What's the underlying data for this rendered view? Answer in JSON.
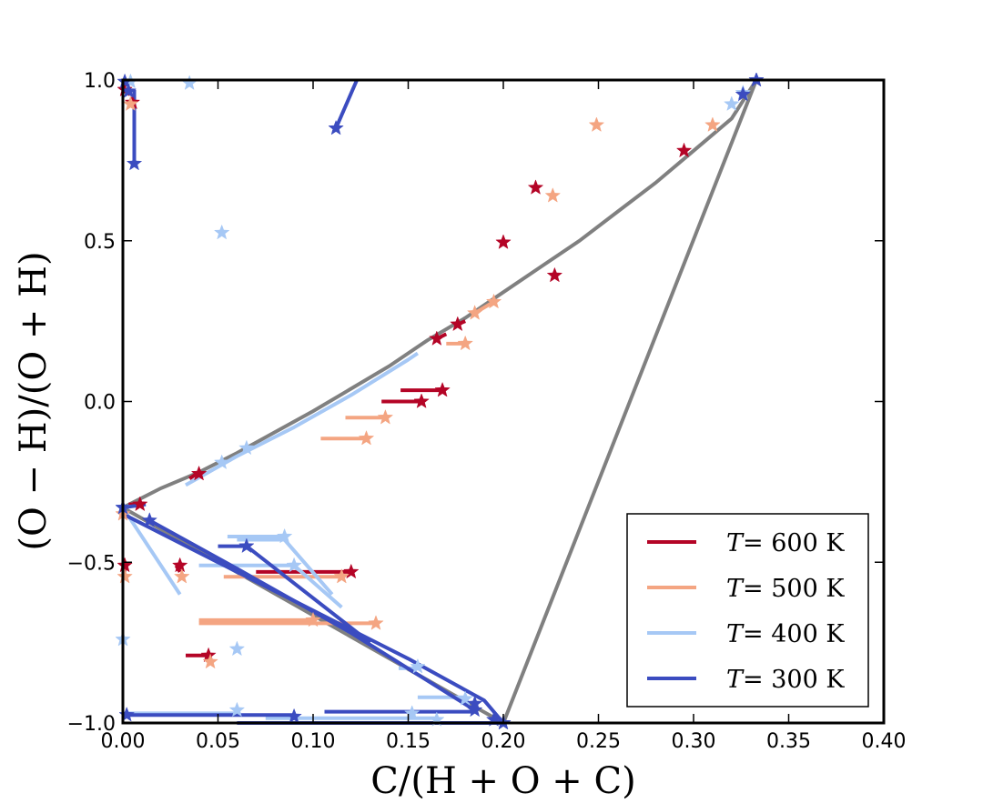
{
  "chart_data": {
    "type": "scatter",
    "title": "",
    "xlabel": "C/(H + O + C)",
    "ylabel": "(O − H)/(O + H)",
    "xlim": [
      0.0,
      0.4
    ],
    "ylim": [
      -1.0,
      1.0
    ],
    "xticks": [
      {
        "v": 0.0,
        "label": "0.00"
      },
      {
        "v": 0.05,
        "label": "0.05"
      },
      {
        "v": 0.1,
        "label": "0.10"
      },
      {
        "v": 0.15,
        "label": "0.15"
      },
      {
        "v": 0.2,
        "label": "0.20"
      },
      {
        "v": 0.25,
        "label": "0.25"
      },
      {
        "v": 0.3,
        "label": "0.30"
      },
      {
        "v": 0.35,
        "label": "0.35"
      },
      {
        "v": 0.4,
        "label": "0.40"
      }
    ],
    "yticks": [
      {
        "v": -1.0,
        "label": "−1.0"
      },
      {
        "v": -0.5,
        "label": "−0.5"
      },
      {
        "v": 0.0,
        "label": "0.0"
      },
      {
        "v": 0.5,
        "label": "0.5"
      },
      {
        "v": 1.0,
        "label": "1.0"
      }
    ],
    "grid": false,
    "legend_position": "bottom-right",
    "reference_lines": [
      {
        "name": "upper-curve",
        "color": "#808080",
        "points": [
          [
            0.0,
            -0.33
          ],
          [
            0.02,
            -0.27
          ],
          [
            0.04,
            -0.22
          ],
          [
            0.06,
            -0.16
          ],
          [
            0.08,
            -0.095
          ],
          [
            0.1,
            -0.03
          ],
          [
            0.12,
            0.04
          ],
          [
            0.14,
            0.11
          ],
          [
            0.16,
            0.19
          ],
          [
            0.18,
            0.26
          ],
          [
            0.2,
            0.34
          ],
          [
            0.22,
            0.42
          ],
          [
            0.24,
            0.5
          ],
          [
            0.26,
            0.59
          ],
          [
            0.28,
            0.68
          ],
          [
            0.3,
            0.78
          ],
          [
            0.32,
            0.88
          ],
          [
            0.333,
            1.0
          ]
        ]
      },
      {
        "name": "lower-line",
        "color": "#808080",
        "points": [
          [
            0.0,
            -0.33
          ],
          [
            0.2,
            -1.0
          ]
        ]
      },
      {
        "name": "right-line",
        "color": "#808080",
        "points": [
          [
            0.2,
            -1.0
          ],
          [
            0.333,
            1.0
          ]
        ]
      }
    ],
    "series": [
      {
        "name": "T = 600 K",
        "label_lhs": "T",
        "label_rhs": "= 600 K",
        "color": "#b40426",
        "segments": [
          {
            "points": [
              [
                0.003,
                -0.32
              ],
              [
                0.009,
                -0.32
              ]
            ]
          },
          {
            "points": [
              [
                0.04,
                -0.22
              ],
              [
                0.035,
                -0.24
              ]
            ]
          },
          {
            "points": [
              [
                0.165,
                0.195
              ],
              [
                0.17,
                0.21
              ]
            ]
          },
          {
            "points": [
              [
                0.176,
                0.24
              ],
              [
                0.18,
                0.25
              ]
            ]
          },
          {
            "points": [
              [
                0.146,
                0.035
              ],
              [
                0.168,
                0.035
              ]
            ]
          },
          {
            "points": [
              [
                0.136,
                0.0
              ],
              [
                0.157,
                0.0
              ]
            ]
          },
          {
            "points": [
              [
                0.0,
                -0.51
              ],
              [
                0.001,
                -0.53
              ]
            ]
          },
          {
            "points": [
              [
                0.028,
                -0.51
              ],
              [
                0.03,
                -0.53
              ]
            ]
          },
          {
            "points": [
              [
                0.07,
                -0.53
              ],
              [
                0.12,
                -0.53
              ]
            ]
          },
          {
            "points": [
              [
                0.033,
                -0.79
              ],
              [
                0.045,
                -0.79
              ]
            ]
          },
          {
            "points": [
              [
                0.003,
                0.93
              ],
              [
                0.005,
                0.92
              ]
            ]
          }
        ],
        "stars": [
          [
            0.001,
            0.97
          ],
          [
            0.005,
            0.93
          ],
          [
            0.295,
            0.78
          ],
          [
            0.217,
            0.665
          ],
          [
            0.2,
            0.495
          ],
          [
            0.227,
            0.392
          ],
          [
            0.176,
            0.24
          ],
          [
            0.165,
            0.195
          ],
          [
            0.168,
            0.035
          ],
          [
            0.157,
            0.0
          ],
          [
            0.04,
            -0.225
          ],
          [
            0.009,
            -0.32
          ],
          [
            0.001,
            -0.51
          ],
          [
            0.03,
            -0.51
          ],
          [
            0.12,
            -0.53
          ],
          [
            0.045,
            -0.79
          ]
        ]
      },
      {
        "name": "T = 500 K",
        "label_lhs": "T",
        "label_rhs": "= 500 K",
        "color": "#f4a582",
        "segments": [
          {
            "points": [
              [
                0.17,
                0.18
              ],
              [
                0.18,
                0.18
              ]
            ]
          },
          {
            "points": [
              [
                0.117,
                -0.05
              ],
              [
                0.138,
                -0.05
              ]
            ]
          },
          {
            "points": [
              [
                0.104,
                -0.115
              ],
              [
                0.128,
                -0.115
              ]
            ]
          },
          {
            "points": [
              [
                0.053,
                -0.545
              ],
              [
                0.115,
                -0.545
              ]
            ]
          },
          {
            "points": [
              [
                0.04,
                -0.68
              ],
              [
                0.1,
                -0.68
              ]
            ]
          },
          {
            "points": [
              [
                0.04,
                -0.69
              ],
              [
                0.133,
                -0.69
              ]
            ]
          },
          {
            "points": [
              [
                0.185,
                0.275
              ],
              [
                0.195,
                0.31
              ]
            ]
          }
        ],
        "stars": [
          [
            0.004,
            0.925
          ],
          [
            0.249,
            0.86
          ],
          [
            0.31,
            0.86
          ],
          [
            0.226,
            0.64
          ],
          [
            0.195,
            0.31
          ],
          [
            0.185,
            0.275
          ],
          [
            0.18,
            0.18
          ],
          [
            0.138,
            -0.05
          ],
          [
            0.128,
            -0.115
          ],
          [
            0.115,
            -0.545
          ],
          [
            0.1,
            -0.68
          ],
          [
            0.133,
            -0.69
          ],
          [
            0.0,
            -0.35
          ],
          [
            0.001,
            -0.545
          ],
          [
            0.031,
            -0.545
          ],
          [
            0.046,
            -0.81
          ]
        ]
      },
      {
        "name": "T = 400 K",
        "label_lhs": "T",
        "label_rhs": "= 400 K",
        "color": "#a6c8f5",
        "segments": [
          {
            "points": [
              [
                0.033,
                -0.26
              ],
              [
                0.06,
                -0.17
              ],
              [
                0.09,
                -0.08
              ],
              [
                0.12,
                0.02
              ],
              [
                0.15,
                0.13
              ],
              [
                0.155,
                0.15
              ]
            ]
          },
          {
            "points": [
              [
                0.0,
                -0.33
              ],
              [
                0.03,
                -0.6
              ]
            ]
          },
          {
            "points": [
              [
                0.055,
                -0.42
              ],
              [
                0.085,
                -0.42
              ]
            ]
          },
          {
            "points": [
              [
                0.06,
                -0.43
              ],
              [
                0.085,
                -0.43
              ],
              [
                0.11,
                -0.6
              ]
            ]
          },
          {
            "points": [
              [
                0.04,
                -0.51
              ],
              [
                0.09,
                -0.51
              ],
              [
                0.115,
                -0.64
              ]
            ]
          },
          {
            "points": [
              [
                0.145,
                -0.83
              ],
              [
                0.155,
                -0.83
              ]
            ]
          },
          {
            "points": [
              [
                0.155,
                -0.92
              ],
              [
                0.18,
                -0.92
              ]
            ]
          },
          {
            "points": [
              [
                0.0,
                -0.97
              ],
              [
                0.06,
                -0.97
              ]
            ]
          },
          {
            "points": [
              [
                0.075,
                -0.985
              ],
              [
                0.165,
                -0.985
              ]
            ]
          },
          {
            "points": [
              [
                0.002,
                0.99
              ],
              [
                0.004,
                1.0
              ]
            ]
          }
        ],
        "stars": [
          [
            0.004,
            0.995
          ],
          [
            0.035,
            0.99
          ],
          [
            0.052,
            0.525
          ],
          [
            0.32,
            0.925
          ],
          [
            0.326,
            0.96
          ],
          [
            0.052,
            -0.19
          ],
          [
            0.065,
            -0.145
          ],
          [
            0.0,
            -0.33
          ],
          [
            0.085,
            -0.42
          ],
          [
            0.09,
            -0.51
          ],
          [
            0.155,
            -0.825
          ],
          [
            0.06,
            -0.77
          ],
          [
            0.0,
            -0.74
          ],
          [
            0.06,
            -0.96
          ],
          [
            0.152,
            -0.97
          ],
          [
            0.165,
            -0.99
          ],
          [
            0.18,
            -0.925
          ]
        ]
      },
      {
        "name": "T = 300 K",
        "label_lhs": "T",
        "label_rhs": "= 300 K",
        "color": "#3b4cc0",
        "segments": [
          {
            "points": [
              [
                0.112,
                0.85
              ],
              [
                0.123,
                1.0
              ]
            ]
          },
          {
            "points": [
              [
                0.006,
                0.97
              ],
              [
                0.006,
                0.74
              ]
            ]
          },
          {
            "points": [
              [
                0.0,
                -0.33
              ],
              [
                0.012,
                -0.32
              ]
            ]
          },
          {
            "points": [
              [
                0.0,
                -0.35
              ],
              [
                0.05,
                -0.5
              ],
              [
                0.1,
                -0.65
              ],
              [
                0.15,
                -0.8
              ],
              [
                0.19,
                -0.93
              ],
              [
                0.2,
                -1.0
              ]
            ]
          },
          {
            "points": [
              [
                0.014,
                -0.37
              ],
              [
                0.06,
                -0.52
              ],
              [
                0.12,
                -0.72
              ],
              [
                0.185,
                -0.96
              ]
            ]
          },
          {
            "points": [
              [
                0.05,
                -0.45
              ],
              [
                0.065,
                -0.45
              ],
              [
                0.13,
                -0.75
              ]
            ]
          },
          {
            "points": [
              [
                0.0,
                -0.975
              ],
              [
                0.09,
                -0.975
              ]
            ]
          },
          {
            "points": [
              [
                0.106,
                -0.965
              ],
              [
                0.186,
                -0.965
              ]
            ]
          },
          {
            "points": [
              [
                0.06,
                -1.0
              ],
              [
                0.2,
                -1.0
              ]
            ]
          }
        ],
        "stars": [
          [
            0.001,
            0.995
          ],
          [
            0.003,
            0.965
          ],
          [
            0.006,
            0.74
          ],
          [
            0.112,
            0.85
          ],
          [
            0.333,
            1.0
          ],
          [
            0.326,
            0.955
          ],
          [
            0.0,
            -0.33
          ],
          [
            0.014,
            -0.37
          ],
          [
            0.065,
            -0.45
          ],
          [
            0.185,
            -0.96
          ],
          [
            0.185,
            -0.94
          ],
          [
            0.195,
            -0.99
          ],
          [
            0.2,
            -1.0
          ],
          [
            0.09,
            -0.98
          ],
          [
            0.002,
            -0.975
          ]
        ]
      }
    ]
  }
}
